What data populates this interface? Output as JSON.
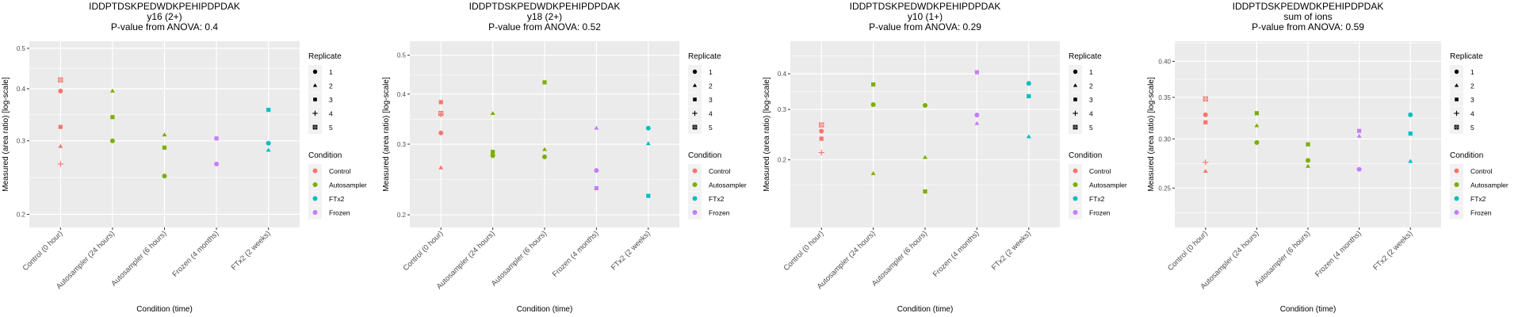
{
  "chart_data": [
    {
      "type": "scatter",
      "title": "IDDPTDSKPEDWDKPEHIPDPDAK",
      "subtitle": "y16 (2+)",
      "annotation": "P-value from ANOVA: 0.4",
      "xlabel": "Condition (time)",
      "ylabel": "Measured (area ratio) [log-scale]",
      "yscale": "log",
      "ylim": [
        0.186,
        0.52
      ],
      "yticks": [
        0.2,
        0.3,
        0.4,
        0.5
      ],
      "ytick_labels": [
        "0.2",
        "0.3",
        "0.4",
        "0.5"
      ],
      "categories": [
        "Control (0 hour)",
        "Autosampler (24 hours)",
        "Autosampler (6 hours)",
        "Frozen (4 months)",
        "FTx2 (2 weeks)"
      ],
      "grid": true,
      "legend_position": "right",
      "points": [
        {
          "category": "Control (0 hour)",
          "condition": "Control",
          "replicate": 5,
          "value": 0.42
        },
        {
          "category": "Control (0 hour)",
          "condition": "Control",
          "replicate": 1,
          "value": 0.395
        },
        {
          "category": "Control (0 hour)",
          "condition": "Control",
          "replicate": 3,
          "value": 0.324
        },
        {
          "category": "Control (0 hour)",
          "condition": "Control",
          "replicate": 2,
          "value": 0.291
        },
        {
          "category": "Control (0 hour)",
          "condition": "Control",
          "replicate": 4,
          "value": 0.264
        },
        {
          "category": "Autosampler (24 hours)",
          "condition": "Autosampler",
          "replicate": 2,
          "value": 0.395
        },
        {
          "category": "Autosampler (24 hours)",
          "condition": "Autosampler",
          "replicate": 3,
          "value": 0.342
        },
        {
          "category": "Autosampler (24 hours)",
          "condition": "Autosampler",
          "replicate": 1,
          "value": 0.3
        },
        {
          "category": "Autosampler (6 hours)",
          "condition": "Autosampler",
          "replicate": 2,
          "value": 0.31
        },
        {
          "category": "Autosampler (6 hours)",
          "condition": "Autosampler",
          "replicate": 3,
          "value": 0.289
        },
        {
          "category": "Autosampler (6 hours)",
          "condition": "Autosampler",
          "replicate": 1,
          "value": 0.247
        },
        {
          "category": "Frozen (4 months)",
          "condition": "Frozen",
          "replicate": 3,
          "value": 0.304
        },
        {
          "category": "Frozen (4 months)",
          "condition": "Frozen",
          "replicate": 2,
          "value": 0.304
        },
        {
          "category": "Frozen (4 months)",
          "condition": "Frozen",
          "replicate": 1,
          "value": 0.264
        },
        {
          "category": "FTx2 (2 weeks)",
          "condition": "FTx2",
          "replicate": 3,
          "value": 0.356
        },
        {
          "category": "FTx2 (2 weeks)",
          "condition": "FTx2",
          "replicate": 1,
          "value": 0.296
        },
        {
          "category": "FTx2 (2 weeks)",
          "condition": "FTx2",
          "replicate": 2,
          "value": 0.285
        }
      ]
    },
    {
      "type": "scatter",
      "title": "IDDPTDSKPEDWDKPEHIPDPDAK",
      "subtitle": "y18 (2+)",
      "annotation": "P-value from ANOVA: 0.52",
      "xlabel": "Condition (time)",
      "ylabel": "Measured (area ratio) [log-scale]",
      "yscale": "log",
      "ylim": [
        0.186,
        0.542
      ],
      "yticks": [
        0.2,
        0.3,
        0.4,
        0.5
      ],
      "ytick_labels": [
        "0.2",
        "0.3",
        "0.4",
        "0.5"
      ],
      "categories": [
        "Control (0 hour)",
        "Autosampler (24 hours)",
        "Autosampler (6 hours)",
        "Frozen (4 months)",
        "FTx2 (2 weeks)"
      ],
      "grid": true,
      "legend_position": "right",
      "points": [
        {
          "category": "Control (0 hour)",
          "condition": "Control",
          "replicate": 3,
          "value": 0.382
        },
        {
          "category": "Control (0 hour)",
          "condition": "Control",
          "replicate": 5,
          "value": 0.358
        },
        {
          "category": "Control (0 hour)",
          "condition": "Control",
          "replicate": 4,
          "value": 0.356
        },
        {
          "category": "Control (0 hour)",
          "condition": "Control",
          "replicate": 1,
          "value": 0.32
        },
        {
          "category": "Control (0 hour)",
          "condition": "Control",
          "replicate": 2,
          "value": 0.262
        },
        {
          "category": "Autosampler (24 hours)",
          "condition": "Autosampler",
          "replicate": 2,
          "value": 0.358
        },
        {
          "category": "Autosampler (24 hours)",
          "condition": "Autosampler",
          "replicate": 3,
          "value": 0.287
        },
        {
          "category": "Autosampler (24 hours)",
          "condition": "Autosampler",
          "replicate": 1,
          "value": 0.281
        },
        {
          "category": "Autosampler (6 hours)",
          "condition": "Autosampler",
          "replicate": 3,
          "value": 0.428
        },
        {
          "category": "Autosampler (6 hours)",
          "condition": "Autosampler",
          "replicate": 2,
          "value": 0.291
        },
        {
          "category": "Autosampler (6 hours)",
          "condition": "Autosampler",
          "replicate": 1,
          "value": 0.279
        },
        {
          "category": "Frozen (4 months)",
          "condition": "Frozen",
          "replicate": 2,
          "value": 0.329
        },
        {
          "category": "Frozen (4 months)",
          "condition": "Frozen",
          "replicate": 1,
          "value": 0.258
        },
        {
          "category": "Frozen (4 months)",
          "condition": "Frozen",
          "replicate": 3,
          "value": 0.233
        },
        {
          "category": "FTx2 (2 weeks)",
          "condition": "FTx2",
          "replicate": 1,
          "value": 0.329
        },
        {
          "category": "FTx2 (2 weeks)",
          "condition": "FTx2",
          "replicate": 2,
          "value": 0.301
        },
        {
          "category": "FTx2 (2 weeks)",
          "condition": "FTx2",
          "replicate": 3,
          "value": 0.223
        }
      ]
    },
    {
      "type": "scatter",
      "title": "IDDPTDSKPEDWDKPEHIPDPDAK",
      "subtitle": "y10 (1+)",
      "annotation": "P-value from ANOVA: 0.29",
      "xlabel": "Condition (time)",
      "ylabel": "Measured (area ratio) [log-scale]",
      "yscale": "log",
      "ylim": [
        0.116,
        0.52
      ],
      "yticks": [
        0.2,
        0.3,
        0.4
      ],
      "ytick_labels": [
        "0.2",
        "0.3",
        "0.4"
      ],
      "categories": [
        "Control (0 hour)",
        "Autosampler (24 hours)",
        "Autosampler (6 hours)",
        "Frozen (4 months)",
        "FTx2 (2 weeks)"
      ],
      "grid": true,
      "legend_position": "right",
      "points": [
        {
          "category": "Control (0 hour)",
          "condition": "Control",
          "replicate": 5,
          "value": 0.265
        },
        {
          "category": "Control (0 hour)",
          "condition": "Control",
          "replicate": 1,
          "value": 0.252
        },
        {
          "category": "Control (0 hour)",
          "condition": "Control",
          "replicate": 3,
          "value": 0.237
        },
        {
          "category": "Control (0 hour)",
          "condition": "Control",
          "replicate": 2,
          "value": 0.238
        },
        {
          "category": "Control (0 hour)",
          "condition": "Control",
          "replicate": 4,
          "value": 0.212
        },
        {
          "category": "Autosampler (24 hours)",
          "condition": "Autosampler",
          "replicate": 3,
          "value": 0.367
        },
        {
          "category": "Autosampler (24 hours)",
          "condition": "Autosampler",
          "replicate": 1,
          "value": 0.312
        },
        {
          "category": "Autosampler (24 hours)",
          "condition": "Autosampler",
          "replicate": 2,
          "value": 0.179
        },
        {
          "category": "Autosampler (6 hours)",
          "condition": "Autosampler",
          "replicate": 1,
          "value": 0.31
        },
        {
          "category": "Autosampler (6 hours)",
          "condition": "Autosampler",
          "replicate": 2,
          "value": 0.204
        },
        {
          "category": "Autosampler (6 hours)",
          "condition": "Autosampler",
          "replicate": 3,
          "value": 0.155
        },
        {
          "category": "Frozen (4 months)",
          "condition": "Frozen",
          "replicate": 3,
          "value": 0.405
        },
        {
          "category": "Frozen (4 months)",
          "condition": "Frozen",
          "replicate": 1,
          "value": 0.287
        },
        {
          "category": "Frozen (4 months)",
          "condition": "Frozen",
          "replicate": 2,
          "value": 0.268
        },
        {
          "category": "FTx2 (2 weeks)",
          "condition": "FTx2",
          "replicate": 1,
          "value": 0.37
        },
        {
          "category": "FTx2 (2 weeks)",
          "condition": "FTx2",
          "replicate": 3,
          "value": 0.334
        },
        {
          "category": "FTx2 (2 weeks)",
          "condition": "FTx2",
          "replicate": 2,
          "value": 0.241
        }
      ]
    },
    {
      "type": "scatter",
      "title": "IDDPTDSKPEDWDKPEHIPDPDAK",
      "subtitle": "sum of ions",
      "annotation": "P-value from ANOVA: 0.59",
      "xlabel": "Condition (time)",
      "ylabel": "Measured (area ratio) [log-scale]",
      "yscale": "log",
      "ylim": [
        0.216,
        0.431
      ],
      "yticks": [
        0.25,
        0.3,
        0.35,
        0.4
      ],
      "ytick_labels": [
        "0.25",
        "0.30",
        "0.35",
        "0.40"
      ],
      "categories": [
        "Control (0 hour)",
        "Autosampler (24 hours)",
        "Autosampler (6 hours)",
        "Frozen (4 months)",
        "FTx2 (2 weeks)"
      ],
      "grid": true,
      "legend_position": "right",
      "points": [
        {
          "category": "Control (0 hour)",
          "condition": "Control",
          "replicate": 5,
          "value": 0.348
        },
        {
          "category": "Control (0 hour)",
          "condition": "Control",
          "replicate": 1,
          "value": 0.328
        },
        {
          "category": "Control (0 hour)",
          "condition": "Control",
          "replicate": 3,
          "value": 0.319
        },
        {
          "category": "Control (0 hour)",
          "condition": "Control",
          "replicate": 4,
          "value": 0.275
        },
        {
          "category": "Control (0 hour)",
          "condition": "Control",
          "replicate": 2,
          "value": 0.266
        },
        {
          "category": "Autosampler (24 hours)",
          "condition": "Autosampler",
          "replicate": 3,
          "value": 0.33
        },
        {
          "category": "Autosampler (24 hours)",
          "condition": "Autosampler",
          "replicate": 2,
          "value": 0.315
        },
        {
          "category": "Autosampler (24 hours)",
          "condition": "Autosampler",
          "replicate": 1,
          "value": 0.296
        },
        {
          "category": "Autosampler (6 hours)",
          "condition": "Autosampler",
          "replicate": 3,
          "value": 0.294
        },
        {
          "category": "Autosampler (6 hours)",
          "condition": "Autosampler",
          "replicate": 1,
          "value": 0.277
        },
        {
          "category": "Autosampler (6 hours)",
          "condition": "Autosampler",
          "replicate": 2,
          "value": 0.271
        },
        {
          "category": "Frozen (4 months)",
          "condition": "Frozen",
          "replicate": 3,
          "value": 0.309
        },
        {
          "category": "Frozen (4 months)",
          "condition": "Frozen",
          "replicate": 2,
          "value": 0.303
        },
        {
          "category": "Frozen (4 months)",
          "condition": "Frozen",
          "replicate": 1,
          "value": 0.268
        },
        {
          "category": "FTx2 (2 weeks)",
          "condition": "FTx2",
          "replicate": 1,
          "value": 0.328
        },
        {
          "category": "FTx2 (2 weeks)",
          "condition": "FTx2",
          "replicate": 3,
          "value": 0.306
        },
        {
          "category": "FTx2 (2 weeks)",
          "condition": "FTx2",
          "replicate": 2,
          "value": 0.276
        }
      ]
    }
  ],
  "legend": {
    "replicate_title": "Replicate",
    "replicates": [
      {
        "label": "1",
        "shape": "circle"
      },
      {
        "label": "2",
        "shape": "triangle"
      },
      {
        "label": "3",
        "shape": "square"
      },
      {
        "label": "4",
        "shape": "plus"
      },
      {
        "label": "5",
        "shape": "boxed-square"
      }
    ],
    "condition_title": "Condition",
    "conditions": [
      {
        "label": "Control",
        "color": "#F8766D"
      },
      {
        "label": "Autosampler",
        "color": "#7CAE00"
      },
      {
        "label": "FTx2",
        "color": "#00BFC4"
      },
      {
        "label": "Frozen",
        "color": "#C77CFF"
      }
    ]
  },
  "colors": {
    "panel_background": "#EBEBEB",
    "grid": "#FFFFFF",
    "text": "#000000",
    "tick_text": "#4D4D4D"
  }
}
